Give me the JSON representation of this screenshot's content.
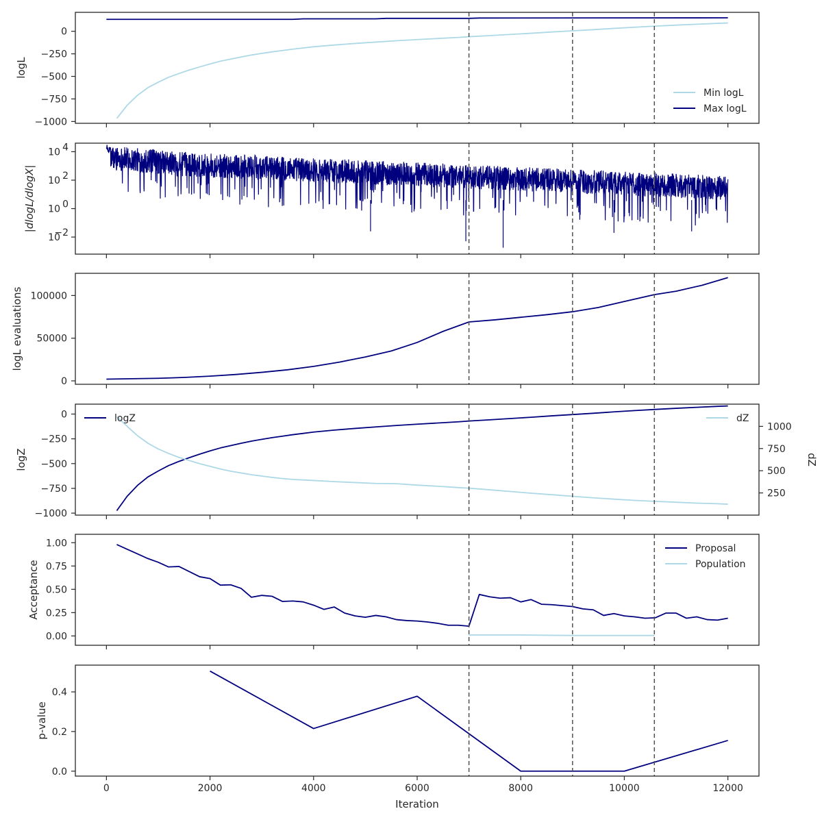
{
  "colors": {
    "dark": "#00007f",
    "light": "#add8e6",
    "vline": "#505050",
    "frame": "#262626"
  },
  "xaxis": {
    "label": "Iteration",
    "range": [
      -600,
      12600
    ],
    "ticks": [
      0,
      2000,
      4000,
      6000,
      8000,
      10000,
      12000
    ],
    "tick_labels": [
      "0",
      "2000",
      "4000",
      "6000",
      "8000",
      "10000",
      "12000"
    ]
  },
  "vlines": [
    7000,
    9000,
    10580
  ],
  "chart_data": [
    {
      "id": "logl",
      "type": "line",
      "ylabel": "logL",
      "ylim": [
        -1020,
        210
      ],
      "yticks": [
        0,
        -250,
        -500,
        -750,
        -1000
      ],
      "ytick_labels": [
        "0",
        "−250",
        "−500",
        "−750",
        "−1000"
      ],
      "legend": "lower-right",
      "series": [
        {
          "name": "Min logL",
          "color": "light",
          "x": [
            200,
            400,
            600,
            800,
            1000,
            1200,
            1400,
            1600,
            1800,
            2000,
            2200,
            2400,
            2600,
            2800,
            3000,
            3200,
            3400,
            3600,
            3800,
            4000,
            4400,
            4800,
            5200,
            5600,
            6000,
            6400,
            6800,
            7000,
            7400,
            7800,
            8200,
            8600,
            9000,
            9400,
            9800,
            10200,
            10600,
            11000,
            11400,
            11800,
            12000
          ],
          "y": [
            -965,
            -820,
            -710,
            -625,
            -565,
            -510,
            -468,
            -430,
            -395,
            -362,
            -332,
            -308,
            -285,
            -263,
            -245,
            -228,
            -213,
            -198,
            -185,
            -172,
            -152,
            -135,
            -120,
            -105,
            -92,
            -80,
            -68,
            -60,
            -48,
            -35,
            -22,
            -8,
            5,
            18,
            32,
            45,
            57,
            68,
            78,
            88,
            92
          ]
        },
        {
          "name": "Max logL",
          "color": "dark",
          "x": [
            0,
            3600,
            3800,
            5200,
            5400,
            7000,
            7200,
            12000
          ],
          "y": [
            132,
            132,
            138,
            138,
            143,
            143,
            147,
            149
          ]
        }
      ]
    },
    {
      "id": "gradient",
      "type": "line",
      "ylabel": "|dlogL/dlogX|",
      "yscale": "log",
      "ylim_log10": [
        -3.2,
        4.6
      ],
      "yticks_exp": [
        4,
        2,
        0,
        -2
      ],
      "legend": "none"
    },
    {
      "id": "evaluations",
      "type": "line",
      "ylabel": "logL evaluations",
      "ylim": [
        -4000,
        126000
      ],
      "yticks": [
        0,
        50000,
        100000
      ],
      "ytick_labels": [
        "0",
        "50000",
        "100000"
      ],
      "legend": "none",
      "series": [
        {
          "name": "",
          "color": "dark",
          "x": [
            0,
            500,
            1000,
            1500,
            2000,
            2500,
            3000,
            3500,
            4000,
            4500,
            5000,
            5500,
            6000,
            6500,
            7000,
            7500,
            8000,
            8500,
            9000,
            9500,
            10000,
            10580,
            11000,
            11500,
            12000
          ],
          "y": [
            2000,
            2500,
            3000,
            4000,
            5500,
            7500,
            10000,
            13000,
            17000,
            22000,
            28000,
            35000,
            45000,
            58000,
            69000,
            71500,
            74500,
            77500,
            81000,
            86000,
            93000,
            101000,
            105000,
            112000,
            121000
          ]
        }
      ]
    },
    {
      "id": "logz",
      "type": "line",
      "ylabel": "logZ",
      "ylabel2": "dZ",
      "ylim": [
        -1020,
        100
      ],
      "yticks": [
        0,
        -250,
        -500,
        -750,
        -1000
      ],
      "ytick_labels": [
        "0",
        "−250",
        "−500",
        "−750",
        "−1000"
      ],
      "ylim2": [
        0,
        1250
      ],
      "yticks2": [
        1000,
        750,
        500,
        250
      ],
      "ytick2_labels": [
        "1000",
        "750",
        "500",
        "250"
      ],
      "series": [
        {
          "name": "logZ",
          "color": "dark",
          "axis": "left",
          "x": [
            200,
            400,
            600,
            800,
            1000,
            1200,
            1400,
            1600,
            1800,
            2000,
            2200,
            2400,
            2600,
            2800,
            3000,
            3200,
            3400,
            3600,
            3800,
            4000,
            4400,
            4800,
            5200,
            5600,
            6000,
            6400,
            6800,
            7000,
            7400,
            7800,
            8200,
            8600,
            9000,
            9400,
            9800,
            10200,
            10600,
            11000,
            11400,
            11800,
            12000
          ],
          "y": [
            -975,
            -830,
            -720,
            -635,
            -575,
            -520,
            -478,
            -440,
            -405,
            -372,
            -342,
            -318,
            -295,
            -273,
            -255,
            -238,
            -223,
            -208,
            -195,
            -182,
            -162,
            -145,
            -130,
            -115,
            -102,
            -90,
            -78,
            -70,
            -58,
            -45,
            -32,
            -18,
            -5,
            8,
            22,
            35,
            47,
            58,
            68,
            78,
            82
          ]
        },
        {
          "name": "dZ",
          "color": "light",
          "axis": "right",
          "x": [
            200,
            400,
            600,
            800,
            1000,
            1200,
            1400,
            1600,
            1800,
            2000,
            2200,
            2400,
            2600,
            2800,
            3000,
            3200,
            3400,
            3600,
            3800,
            4000,
            4400,
            4800,
            5200,
            5600,
            6000,
            6400,
            6800,
            7000,
            7400,
            7800,
            8200,
            8600,
            9000,
            9400,
            9800,
            10200,
            10600,
            11000,
            11400,
            11800,
            12000
          ],
          "y": [
            1110,
            1000,
            895,
            810,
            745,
            695,
            650,
            615,
            580,
            550,
            520,
            495,
            475,
            455,
            440,
            425,
            412,
            402,
            396,
            390,
            377,
            367,
            357,
            354,
            338,
            325,
            310,
            304,
            285,
            266,
            247,
            230,
            212,
            195,
            180,
            166,
            155,
            145,
            135,
            128,
            123
          ]
        }
      ]
    },
    {
      "id": "acceptance",
      "type": "line",
      "ylabel": "Acceptance",
      "ylim": [
        -0.1,
        1.09
      ],
      "yticks": [
        1.0,
        0.75,
        0.5,
        0.25,
        0.0
      ],
      "ytick_labels": [
        "1.00",
        "0.75",
        "0.50",
        "0.25",
        "0.00"
      ],
      "legend": "top-right",
      "series": [
        {
          "name": "Proposal",
          "color": "dark",
          "x": [
            200,
            400,
            600,
            800,
            1000,
            1200,
            1400,
            1600,
            1800,
            2000,
            2200,
            2400,
            2600,
            2800,
            3000,
            3200,
            3400,
            3600,
            3800,
            4000,
            4200,
            4400,
            4600,
            4800,
            5000,
            5200,
            5400,
            5600,
            5800,
            6000,
            6200,
            6400,
            6600,
            6800,
            7000,
            7200,
            7400,
            7600,
            7800,
            8000,
            8200,
            8400,
            8600,
            8800,
            9000,
            9200,
            9400,
            9600,
            9800,
            10000,
            10200,
            10400,
            10600,
            10800,
            11000,
            11200,
            11400,
            11600,
            11800,
            12000
          ],
          "y": [
            0.98,
            0.93,
            0.88,
            0.83,
            0.79,
            0.74,
            0.745,
            0.69,
            0.635,
            0.615,
            0.545,
            0.548,
            0.51,
            0.415,
            0.435,
            0.425,
            0.37,
            0.375,
            0.365,
            0.33,
            0.285,
            0.31,
            0.245,
            0.215,
            0.2,
            0.22,
            0.205,
            0.175,
            0.165,
            0.16,
            0.15,
            0.135,
            0.115,
            0.115,
            0.105,
            0.445,
            0.42,
            0.405,
            0.41,
            0.365,
            0.39,
            0.34,
            0.335,
            0.325,
            0.315,
            0.29,
            0.28,
            0.22,
            0.24,
            0.215,
            0.205,
            0.19,
            0.195,
            0.245,
            0.245,
            0.19,
            0.205,
            0.175,
            0.17,
            0.19
          ]
        },
        {
          "name": "Population",
          "color": "light",
          "x": [
            7000,
            8000,
            9000,
            10580
          ],
          "y": [
            0.01,
            0.01,
            0.005,
            0.005
          ]
        }
      ]
    },
    {
      "id": "pvalue",
      "type": "line",
      "ylabel": "p-value",
      "ylim": [
        -0.025,
        0.535
      ],
      "yticks": [
        0.4,
        0.2,
        0.0
      ],
      "ytick_labels": [
        "0.4",
        "0.2",
        "0.0"
      ],
      "legend": "none",
      "series": [
        {
          "name": "",
          "color": "dark",
          "x": [
            2000,
            4000,
            6000,
            8000,
            10000,
            12000
          ],
          "y": [
            0.505,
            0.215,
            0.378,
            0.0,
            0.0,
            0.155
          ]
        }
      ]
    }
  ]
}
